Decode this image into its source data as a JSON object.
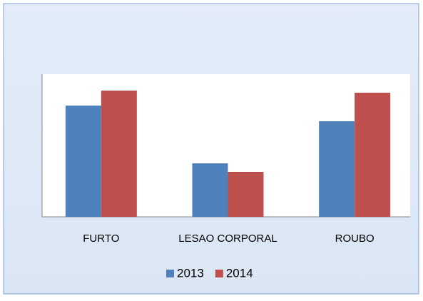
{
  "chart_data": {
    "type": "bar",
    "categories": [
      "FURTO",
      "LESAO CORPORAL",
      "ROUBO"
    ],
    "series": [
      {
        "name": "2013",
        "color": "#4f81bd",
        "values": [
          156,
          75,
          134
        ]
      },
      {
        "name": "2014",
        "color": "#c0504d",
        "values": [
          177,
          63,
          174
        ]
      }
    ],
    "ylim": [
      0,
      200
    ],
    "legend": "bottom"
  }
}
